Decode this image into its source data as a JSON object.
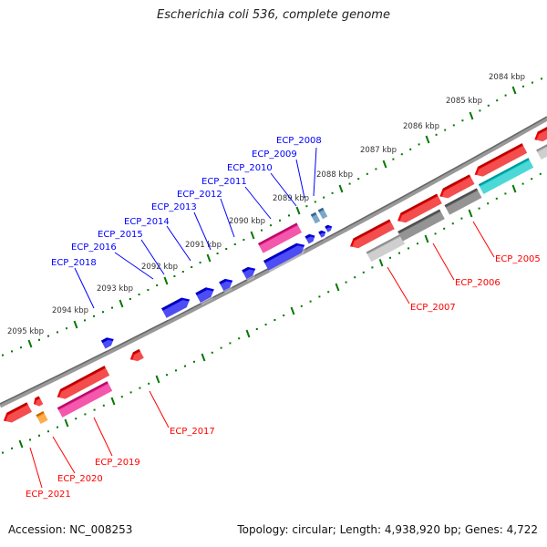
{
  "title": "Escherichia coli 536, complete genome",
  "footer": {
    "accession": "Accession: NC_008253",
    "topology": "Topology: circular; Length: 4,938,920 bp; Genes: 4,722"
  },
  "kbp_labels": [
    "2095 kbp",
    "2094 kbp",
    "2093 kbp",
    "2092 kbp",
    "2091 kbp",
    "2090 kbp",
    "2089 kbp",
    "2088 kbp",
    "2087 kbp",
    "2086 kbp",
    "2085 kbp",
    "2084 kbp"
  ],
  "forward_gene_labels": [
    "ECP_2008",
    "ECP_2009",
    "ECP_2010",
    "ECP_2011",
    "ECP_2012",
    "ECP_2013",
    "ECP_2014",
    "ECP_2015",
    "ECP_2016",
    "ECP_2018"
  ],
  "reverse_gene_labels": [
    "ECP_2005",
    "ECP_2006",
    "ECP_2007",
    "ECP_2017",
    "ECP_2019",
    "ECP_2020",
    "ECP_2021"
  ],
  "colors": {
    "forward_label": "#0000ff",
    "reverse_label": "#ff0000",
    "tick": "#007700",
    "backbone": "#888888",
    "blue": "#0000ee",
    "red": "#ee0000",
    "pink": "#ee1188",
    "steel": "#4682b4",
    "gray_dark": "#666666",
    "gray_light": "#bbbbbb",
    "cyan": "#00c8c8",
    "orange": "#ff8800"
  }
}
